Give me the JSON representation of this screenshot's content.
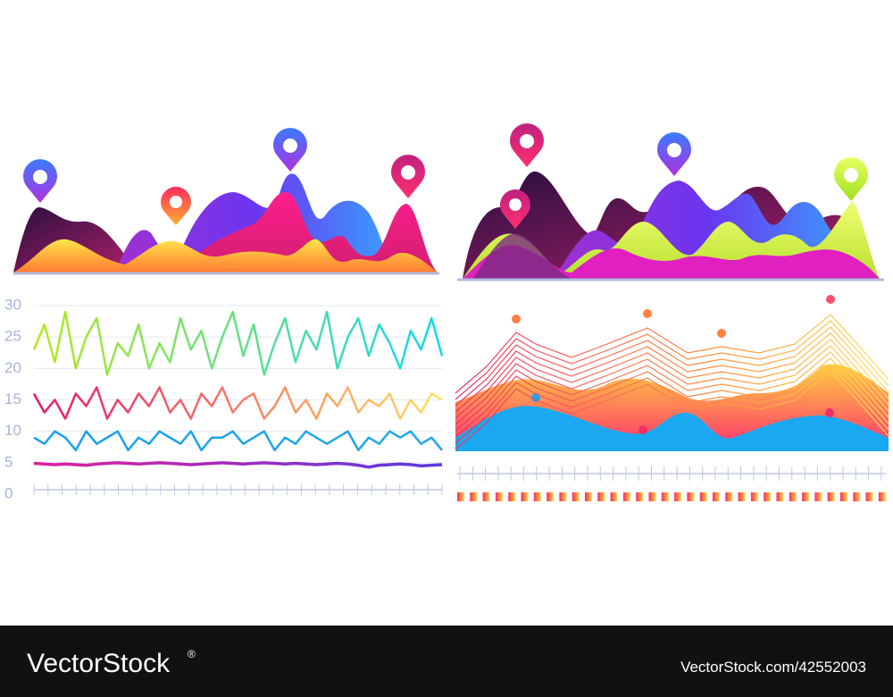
{
  "chart_data": {
    "type": "line",
    "ylim": [
      0,
      30
    ],
    "yticks": [
      0,
      5,
      10,
      15,
      20,
      25,
      30
    ],
    "grid": true,
    "series": [
      {
        "gradient": [
          "#b4e81c",
          "#12d8f0"
        ],
        "values": [
          23,
          27,
          21,
          29,
          20,
          25,
          28,
          19,
          24,
          22,
          27,
          20,
          24,
          21,
          28,
          23,
          26,
          20,
          25,
          29,
          22,
          27,
          19,
          24,
          28,
          21,
          26,
          23,
          29,
          20,
          25,
          28,
          22,
          27,
          24,
          20,
          26,
          23,
          28,
          22
        ]
      },
      {
        "gradient": [
          "#e8186e",
          "#ffe060"
        ],
        "values": [
          16,
          13,
          15,
          12,
          16,
          14,
          17,
          12,
          15,
          13,
          16,
          14,
          17,
          13,
          15,
          12,
          16,
          14,
          17,
          13,
          15,
          16,
          12,
          14,
          17,
          13,
          15,
          12,
          16,
          14,
          17,
          13,
          15,
          14,
          16,
          12,
          15,
          13,
          16,
          15
        ]
      },
      {
        "gradient": [
          "#1a9ff0",
          "#22a8e8"
        ],
        "values": [
          9,
          8,
          10,
          9,
          7,
          10,
          8,
          9,
          10,
          7,
          9,
          8,
          10,
          9,
          8,
          10,
          7,
          9,
          9,
          10,
          8,
          9,
          10,
          7,
          9,
          8,
          10,
          9,
          8,
          9,
          10,
          7,
          9,
          8,
          10,
          9,
          10,
          8,
          9,
          7
        ]
      },
      {
        "gradient": [
          "#e0209a",
          "#5a3ae0"
        ],
        "values": [
          4.9,
          4.8,
          4.7,
          4.8,
          4.7,
          4.6,
          4.8,
          4.9,
          5,
          4.9,
          4.8,
          4.9,
          5,
          4.9,
          4.8,
          4.7,
          4.8,
          4.9,
          5,
          4.9,
          4.8,
          4.9,
          5,
          4.9,
          4.8,
          4.9,
          4.8,
          4.7,
          4.8,
          4.9,
          4.8,
          4.6,
          4.3,
          4.6,
          4.7,
          4.8,
          4.7,
          4.5,
          4.6,
          4.7
        ]
      }
    ]
  },
  "footer": {
    "brand": "VectorStock",
    "mark": "®",
    "url": "VectorStock.com/42552003"
  }
}
